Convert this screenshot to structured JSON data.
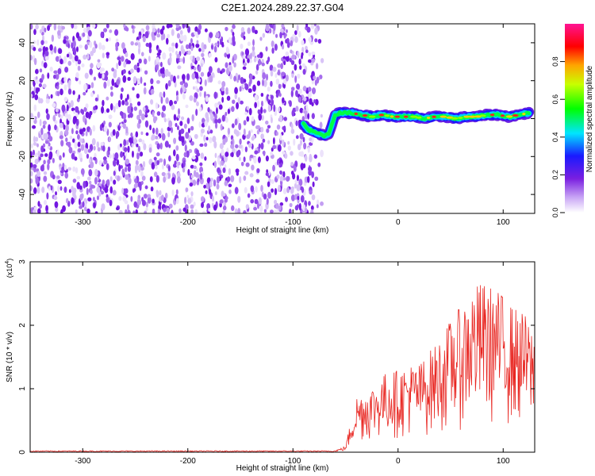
{
  "title": "C2E1.2024.289.22.37.G04",
  "chart_data": [
    {
      "type": "heatmap",
      "xlabel": "Height of straight line (km)",
      "ylabel": "Frequency (Hz)",
      "xlim": [
        -350,
        130
      ],
      "ylim": [
        -50,
        50
      ],
      "xticks": [
        -300,
        -200,
        -100,
        0,
        100
      ],
      "yticks": [
        -40,
        -20,
        0,
        20,
        40
      ],
      "noise_region_x": [
        -350,
        -80
      ],
      "ridge": [
        [
          -90,
          -3
        ],
        [
          -85,
          -6
        ],
        [
          -80,
          -7
        ],
        [
          -75,
          -8
        ],
        [
          -70,
          -9
        ],
        [
          -66,
          -8
        ],
        [
          -63,
          -3
        ],
        [
          -60,
          2
        ],
        [
          -55,
          3
        ],
        [
          -45,
          3
        ],
        [
          -35,
          2
        ],
        [
          -25,
          1
        ],
        [
          -15,
          2
        ],
        [
          -5,
          1
        ],
        [
          5,
          1
        ],
        [
          15,
          1
        ],
        [
          25,
          0
        ],
        [
          35,
          1
        ],
        [
          45,
          1
        ],
        [
          55,
          0
        ],
        [
          65,
          1
        ],
        [
          75,
          1
        ],
        [
          85,
          2
        ],
        [
          95,
          2
        ],
        [
          105,
          1
        ],
        [
          115,
          2
        ],
        [
          125,
          3
        ]
      ],
      "colorbar": {
        "label": "Normalized spectral amplitude",
        "range": [
          0,
          1
        ],
        "ticks": [
          "0.0",
          "0.2",
          "0.4",
          "0.6",
          "0.8"
        ]
      },
      "colors": [
        "#ffffff",
        "#8a2be2",
        "#0000ff",
        "#00ffff",
        "#00ff00",
        "#ffff00",
        "#ff0000",
        "#ff00ff"
      ]
    },
    {
      "type": "line",
      "xlabel": "Height of straight line (km)",
      "ylabel": "SNR (10 * v/v)",
      "multiplier": "(x10",
      "multiplier_exp": "4",
      "multiplier_close": ")",
      "xlim": [
        -350,
        130
      ],
      "ylim": [
        0,
        3
      ],
      "xticks": [
        -300,
        -200,
        -100,
        0,
        100
      ],
      "yticks": [
        0,
        1,
        2,
        3
      ],
      "color": "#e8241f",
      "envelope": [
        [
          -350,
          0.02
        ],
        [
          -60,
          0.02
        ],
        [
          -50,
          0.1
        ],
        [
          -45,
          0.5
        ],
        [
          -40,
          0.9
        ],
        [
          -30,
          1.0
        ],
        [
          -20,
          1.1
        ],
        [
          -10,
          1.3
        ],
        [
          0,
          1.3
        ],
        [
          10,
          1.4
        ],
        [
          20,
          1.4
        ],
        [
          30,
          1.6
        ],
        [
          40,
          1.8
        ],
        [
          50,
          2.1
        ],
        [
          60,
          2.3
        ],
        [
          70,
          2.6
        ],
        [
          80,
          2.7
        ],
        [
          90,
          2.6
        ],
        [
          100,
          2.5
        ],
        [
          110,
          2.3
        ],
        [
          120,
          2.2
        ],
        [
          130,
          1.9
        ]
      ]
    }
  ]
}
